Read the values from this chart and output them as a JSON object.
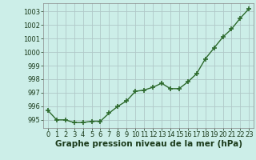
{
  "x": [
    0,
    1,
    2,
    3,
    4,
    5,
    6,
    7,
    8,
    9,
    10,
    11,
    12,
    13,
    14,
    15,
    16,
    17,
    18,
    19,
    20,
    21,
    22,
    23
  ],
  "y": [
    995.7,
    995.0,
    995.0,
    994.8,
    994.8,
    994.9,
    994.9,
    995.5,
    996.0,
    996.4,
    997.1,
    997.2,
    997.4,
    997.7,
    997.3,
    997.3,
    997.8,
    998.4,
    999.5,
    1000.3,
    1001.1,
    1001.7,
    1002.5,
    1003.2
  ],
  "line_color": "#2d6a2d",
  "marker": "+",
  "marker_size": 4,
  "bg_color": "#cceee8",
  "grid_color": "#b0c8c8",
  "xlabel": "Graphe pression niveau de la mer (hPa)",
  "xlabel_fontsize": 7.5,
  "ylim": [
    994.4,
    1003.6
  ],
  "yticks": [
    995,
    996,
    997,
    998,
    999,
    1000,
    1001,
    1002,
    1003
  ],
  "xlim": [
    -0.5,
    23.5
  ],
  "xticks": [
    0,
    1,
    2,
    3,
    4,
    5,
    6,
    7,
    8,
    9,
    10,
    11,
    12,
    13,
    14,
    15,
    16,
    17,
    18,
    19,
    20,
    21,
    22,
    23
  ],
  "tick_fontsize": 6,
  "line_width": 1.0,
  "marker_color": "#2d6a2d"
}
